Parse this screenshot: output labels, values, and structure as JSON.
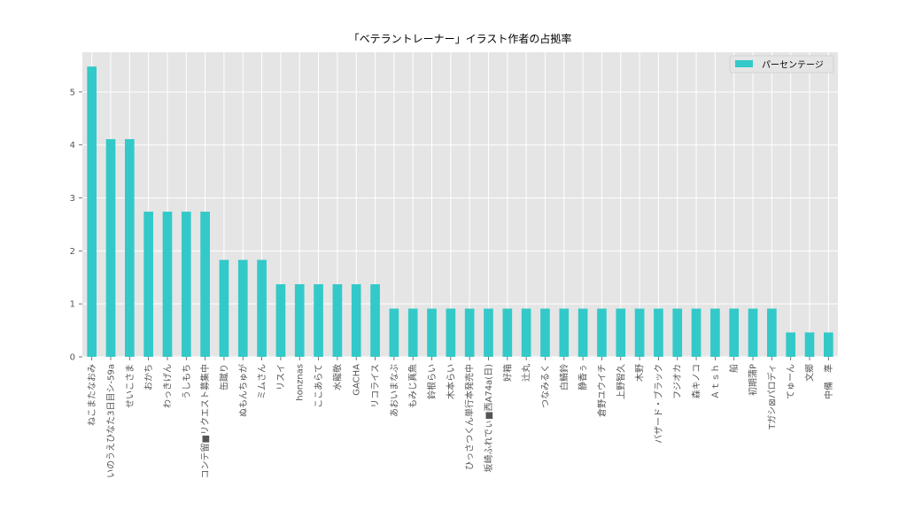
{
  "chart_data": {
    "type": "bar",
    "title": "「ベテラントレーナー」イラスト作者の占拠率",
    "xlabel": "",
    "ylabel": "",
    "ylim": [
      0,
      5.75
    ],
    "yticks": [
      0,
      1,
      2,
      3,
      4,
      5
    ],
    "grid": true,
    "legend": "top-right",
    "bar_color": "#33C9C9",
    "background_color": "#E5E5E5",
    "categories": [
      "ねこまたなおみ",
      "いのうえひなた3日目シ-59a",
      "せいこさま",
      "おかち",
      "わっきげん",
      "うしもち",
      "コンテ留■リクエスト募集中",
      "缶蹴り",
      "ぬもんちゅが",
      "ミムさん",
      "リスイ",
      "honznas",
      "ここあらて",
      "水龍敬",
      "GACHA",
      "リコライス",
      "あおいまなぶ",
      "もみじ真魚",
      "鈴根らい",
      "木本らい",
      "ひっさつくん単行本発売中",
      "坂崎ふれでぃ■西A74a(日)",
      "好箱",
      "辻丸",
      "つなみるく",
      "白鯖鈴",
      "静香ぅ",
      "倉野ユウイチ",
      "上野智久",
      "木野",
      "バザード・ブラック",
      "フジオカ",
      "森キノコ",
      "Ａｔｓｈ",
      "船",
      "初期蒲P",
      "Tガシ⊠パロディ",
      "てゅーん",
      "文郷",
      "中備　準"
    ],
    "series": [
      {
        "name": "パーセンテージ",
        "values": [
          5.48,
          4.11,
          4.11,
          2.74,
          2.74,
          2.74,
          2.74,
          1.83,
          1.83,
          1.83,
          1.37,
          1.37,
          1.37,
          1.37,
          1.37,
          1.37,
          0.91,
          0.91,
          0.91,
          0.91,
          0.91,
          0.91,
          0.91,
          0.91,
          0.91,
          0.91,
          0.91,
          0.91,
          0.91,
          0.91,
          0.91,
          0.91,
          0.91,
          0.91,
          0.91,
          0.91,
          0.91,
          0.46,
          0.46,
          0.46
        ]
      }
    ]
  }
}
